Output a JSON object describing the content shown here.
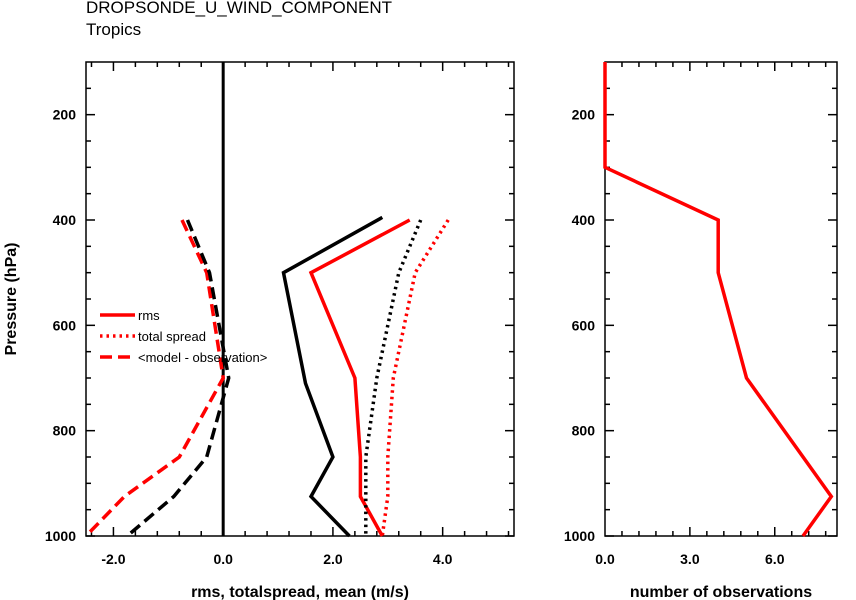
{
  "header": {
    "title": "DROPSONDE_U_WIND_COMPONENT",
    "subtitle": "Tropics"
  },
  "chart_data": [
    {
      "type": "line",
      "xlabel": "rms, totalspread, mean (m/s)",
      "ylabel": "Pressure (hPa)",
      "xlim": [
        -2.5,
        5.3
      ],
      "ylim": [
        1000,
        100
      ],
      "x_ticks": [
        -2.0,
        0.0,
        2.0,
        4.0
      ],
      "x_tick_labels": [
        "-2.0",
        "0.0",
        "2.0",
        "4.0"
      ],
      "y_ticks": [
        200,
        400,
        600,
        800,
        1000
      ],
      "y_tick_labels": [
        "200",
        "400",
        "600",
        "800",
        "1000"
      ],
      "legend": {
        "placement": "center-left",
        "entries": [
          {
            "label": "rms",
            "style": "solid",
            "color": "#ff0000"
          },
          {
            "label": "total spread",
            "style": "dotted",
            "color": "#ff0000"
          },
          {
            "label": "<model - observation>",
            "style": "dashed",
            "color": "#ff0000"
          }
        ]
      },
      "series": [
        {
          "style": "solid",
          "color": "#ff0000",
          "points": [
            [
              3.4,
              400
            ],
            [
              1.6,
              500
            ],
            [
              2.4,
              700
            ],
            [
              2.5,
              850
            ],
            [
              2.5,
              925
            ],
            [
              2.9,
              1000
            ]
          ]
        },
        {
          "style": "dotted",
          "color": "#ff0000",
          "points": [
            [
              4.1,
              400
            ],
            [
              3.5,
              500
            ],
            [
              3.1,
              700
            ],
            [
              3.0,
              850
            ],
            [
              3.0,
              925
            ],
            [
              2.9,
              1000
            ]
          ]
        },
        {
          "style": "dashed",
          "color": "#ff0000",
          "points": [
            [
              -0.75,
              400
            ],
            [
              -0.3,
              500
            ],
            [
              0.0,
              700
            ],
            [
              -0.8,
              850
            ],
            [
              -1.8,
              925
            ],
            [
              -2.5,
              1000
            ]
          ]
        },
        {
          "style": "solid",
          "color": "#000000",
          "points": [
            [
              2.9,
              395
            ],
            [
              1.1,
              500
            ],
            [
              1.5,
              710
            ],
            [
              2.0,
              850
            ],
            [
              1.6,
              925
            ],
            [
              2.3,
              1000
            ]
          ]
        },
        {
          "style": "dotted",
          "color": "#000000",
          "points": [
            [
              3.6,
              400
            ],
            [
              3.2,
              500
            ],
            [
              2.8,
              700
            ],
            [
              2.6,
              850
            ],
            [
              2.6,
              925
            ],
            [
              2.6,
              1000
            ]
          ]
        },
        {
          "style": "dashed",
          "color": "#000000",
          "points": [
            [
              -0.65,
              400
            ],
            [
              -0.25,
              500
            ],
            [
              0.1,
              700
            ],
            [
              -0.3,
              850
            ],
            [
              -0.9,
              925
            ],
            [
              -1.75,
              1000
            ]
          ]
        }
      ],
      "reference_line": {
        "x": 0.0,
        "color": "#000000"
      }
    },
    {
      "type": "line",
      "xlabel": "number of observations",
      "ylabel": "",
      "xlim": [
        0,
        8.2
      ],
      "ylim": [
        1000,
        100
      ],
      "x_ticks": [
        0.0,
        3.0,
        6.0
      ],
      "x_tick_labels": [
        "0.0",
        "3.0",
        "6.0"
      ],
      "y_ticks": [
        200,
        400,
        600,
        800,
        1000
      ],
      "y_tick_labels": [
        "200",
        "400",
        "600",
        "800",
        "1000"
      ],
      "series": [
        {
          "style": "solid",
          "color": "#ff0000",
          "points": [
            [
              0,
              100
            ],
            [
              0,
              300
            ],
            [
              4,
              400
            ],
            [
              4,
              500
            ],
            [
              5,
              700
            ],
            [
              8,
              925
            ],
            [
              7,
              1000
            ]
          ]
        }
      ]
    }
  ]
}
